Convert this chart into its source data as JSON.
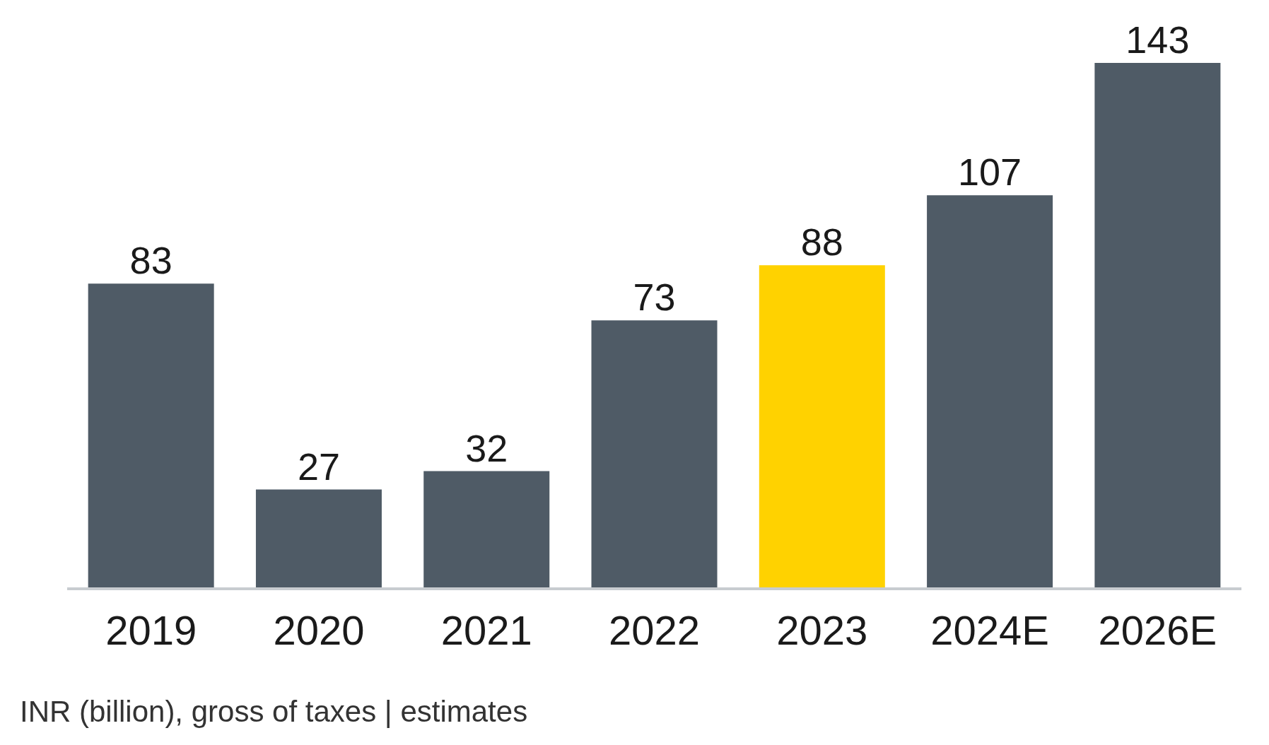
{
  "chart_data": {
    "type": "bar",
    "categories": [
      "2019",
      "2020",
      "2021",
      "2022",
      "2023",
      "2024E",
      "2026E"
    ],
    "values": [
      83,
      27,
      32,
      73,
      88,
      107,
      143
    ],
    "colors": [
      "#4f5b66",
      "#4f5b66",
      "#4f5b66",
      "#4f5b66",
      "#ffd200",
      "#4f5b66",
      "#4f5b66"
    ],
    "data_labels": true,
    "grid": false,
    "legend": false,
    "annotations": [
      "INR (billion), gross of taxes | estimates"
    ]
  }
}
